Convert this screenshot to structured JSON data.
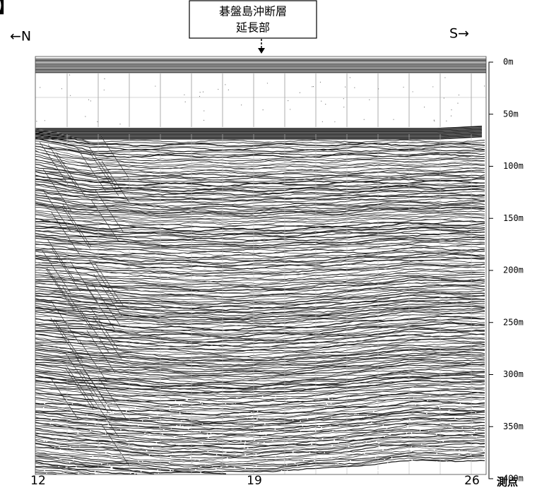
{
  "title_fragment": "】",
  "annotation": {
    "lines": [
      "碁盤島沖断層",
      "延長部"
    ]
  },
  "direction": {
    "left": "←N",
    "right": "S→"
  },
  "depth_axis": {
    "labels": [
      "0m",
      "50m",
      "100m",
      "150m",
      "200m",
      "250m",
      "300m",
      "350m",
      "400m"
    ]
  },
  "stations": {
    "labels": [
      "12",
      "19",
      "26"
    ],
    "unit": "測点"
  }
}
